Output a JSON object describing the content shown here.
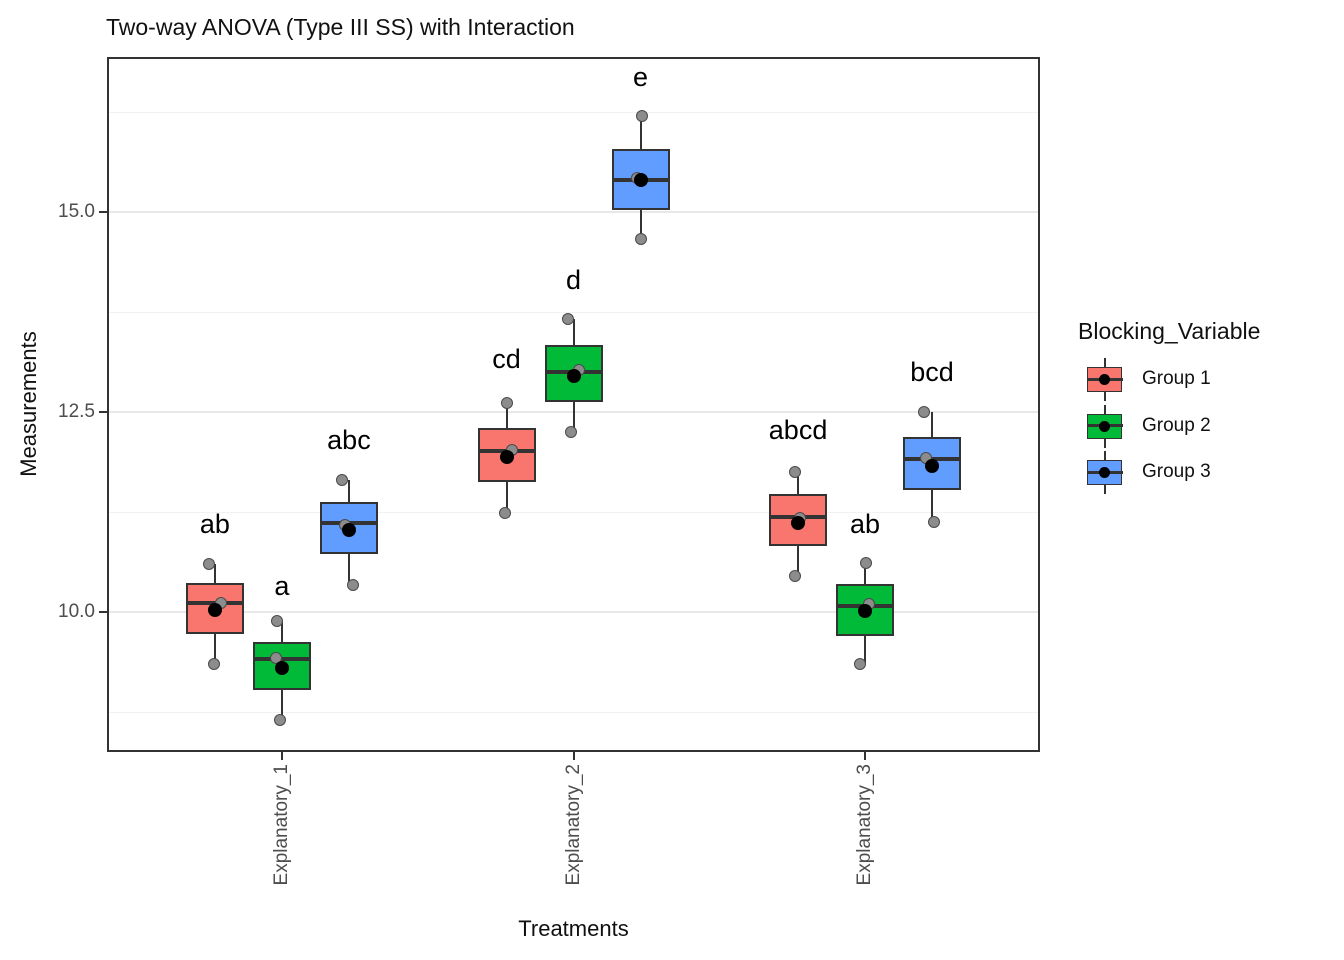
{
  "chart_data": {
    "type": "boxplot",
    "title": "Two-way ANOVA (Type III SS) with Interaction",
    "xlabel": "Treatments",
    "ylabel": "Measurements",
    "legend_title": "Blocking_Variable",
    "legend_position": "right",
    "grid": "major-and-minor",
    "ylim": [
      8.25,
      16.94
    ],
    "y_major_ticks": [
      {
        "v": 10.0,
        "label": "10.0"
      },
      {
        "v": 12.5,
        "label": "12.5"
      },
      {
        "v": 15.0,
        "label": "15.0"
      }
    ],
    "y_minor_ticks": [
      8.75,
      11.25,
      13.75,
      16.25
    ],
    "categories": [
      "Explanatory_1",
      "Explanatory_2",
      "Explanatory_3"
    ],
    "groups": [
      {
        "name": "Group 1",
        "color": "#F8766D"
      },
      {
        "name": "Group 2",
        "color": "#00BA38"
      },
      {
        "name": "Group 3",
        "color": "#619CFF"
      }
    ],
    "style": {
      "panel_bg": "#FFFFFF",
      "panel_border": "#333333",
      "grid_major": "#E8E8E8",
      "grid_minor": "#F2F2F2",
      "box_outline": "#333333",
      "tick_label_color": "#4D4D4D",
      "jitter_fill": "#8C8C8C",
      "jitter_stroke": "#4A4A4A",
      "mean_color": "#000000"
    },
    "boxes": [
      {
        "category": "Explanatory_1",
        "category_index": 0,
        "group": "Group 1",
        "group_index": 0,
        "letter": "ab",
        "letter_value": 11.1,
        "whisker_low": 9.35,
        "q1": 9.73,
        "median": 10.11,
        "q3": 10.36,
        "whisker_high": 10.6,
        "mean": 10.03,
        "points": [
          {
            "v": 10.6,
            "dx": -6
          },
          {
            "v": 10.11,
            "dx": 6
          },
          {
            "v": 9.35,
            "dx": -1
          }
        ]
      },
      {
        "category": "Explanatory_1",
        "category_index": 0,
        "group": "Group 2",
        "group_index": 1,
        "letter": "a",
        "letter_value": 10.33,
        "whisker_low": 8.65,
        "q1": 9.03,
        "median": 9.41,
        "q3": 9.63,
        "whisker_high": 9.89,
        "mean": 9.3,
        "points": [
          {
            "v": 9.89,
            "dx": -5
          },
          {
            "v": 9.42,
            "dx": -6
          },
          {
            "v": 8.65,
            "dx": -2
          }
        ]
      },
      {
        "category": "Explanatory_1",
        "category_index": 0,
        "group": "Group 3",
        "group_index": 2,
        "letter": "abc",
        "letter_value": 12.15,
        "whisker_low": 10.34,
        "q1": 10.73,
        "median": 11.11,
        "q3": 11.38,
        "whisker_high": 11.65,
        "mean": 11.03,
        "points": [
          {
            "v": 11.65,
            "dx": -7
          },
          {
            "v": 11.09,
            "dx": -4
          },
          {
            "v": 10.34,
            "dx": 4
          }
        ]
      },
      {
        "category": "Explanatory_2",
        "category_index": 1,
        "group": "Group 1",
        "group_index": 0,
        "letter": "cd",
        "letter_value": 13.16,
        "whisker_low": 11.24,
        "q1": 11.63,
        "median": 12.01,
        "q3": 12.3,
        "whisker_high": 12.61,
        "mean": 11.94,
        "points": [
          {
            "v": 12.61,
            "dx": 0
          },
          {
            "v": 12.02,
            "dx": 5
          },
          {
            "v": 11.24,
            "dx": -2
          }
        ]
      },
      {
        "category": "Explanatory_2",
        "category_index": 1,
        "group": "Group 2",
        "group_index": 1,
        "letter": "d",
        "letter_value": 14.15,
        "whisker_low": 12.25,
        "q1": 12.63,
        "median": 13.0,
        "q3": 13.34,
        "whisker_high": 13.66,
        "mean": 12.95,
        "points": [
          {
            "v": 13.66,
            "dx": -6
          },
          {
            "v": 13.03,
            "dx": 5
          },
          {
            "v": 12.25,
            "dx": -3
          }
        ]
      },
      {
        "category": "Explanatory_2",
        "category_index": 1,
        "group": "Group 3",
        "group_index": 2,
        "letter": "e",
        "letter_value": 16.69,
        "whisker_low": 14.67,
        "q1": 15.03,
        "median": 15.4,
        "q3": 15.79,
        "whisker_high": 16.2,
        "mean": 15.4,
        "points": [
          {
            "v": 16.2,
            "dx": 1
          },
          {
            "v": 15.43,
            "dx": -4
          },
          {
            "v": 14.67,
            "dx": 0
          }
        ]
      },
      {
        "category": "Explanatory_3",
        "category_index": 2,
        "group": "Group 1",
        "group_index": 0,
        "letter": "abcd",
        "letter_value": 12.28,
        "whisker_low": 10.45,
        "q1": 10.83,
        "median": 11.19,
        "q3": 11.48,
        "whisker_high": 11.75,
        "mean": 11.11,
        "points": [
          {
            "v": 11.75,
            "dx": -3
          },
          {
            "v": 11.18,
            "dx": 2
          },
          {
            "v": 10.45,
            "dx": -3
          }
        ]
      },
      {
        "category": "Explanatory_3",
        "category_index": 2,
        "group": "Group 2",
        "group_index": 1,
        "letter": "ab",
        "letter_value": 11.1,
        "whisker_low": 9.35,
        "q1": 9.7,
        "median": 10.08,
        "q3": 10.35,
        "whisker_high": 10.61,
        "mean": 10.01,
        "points": [
          {
            "v": 10.61,
            "dx": 1
          },
          {
            "v": 10.1,
            "dx": 4
          },
          {
            "v": 9.35,
            "dx": -5
          }
        ]
      },
      {
        "category": "Explanatory_3",
        "category_index": 2,
        "group": "Group 3",
        "group_index": 2,
        "letter": "bcd",
        "letter_value": 13.0,
        "whisker_low": 11.13,
        "q1": 11.53,
        "median": 11.91,
        "q3": 12.19,
        "whisker_high": 12.5,
        "mean": 11.83,
        "points": [
          {
            "v": 12.5,
            "dx": -8
          },
          {
            "v": 11.93,
            "dx": -6
          },
          {
            "v": 11.13,
            "dx": 2
          }
        ]
      }
    ]
  }
}
